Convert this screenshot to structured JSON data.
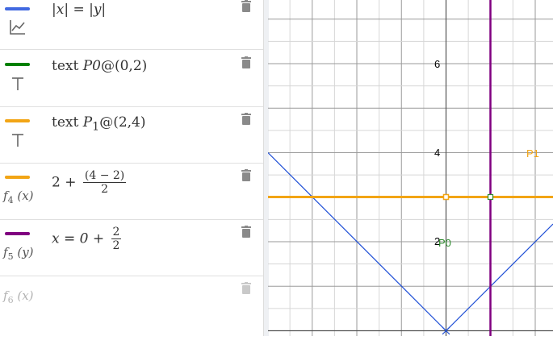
{
  "algebra_view": {
    "rows": [
      {
        "color": "#4169e1",
        "type_icon": "graph-icon",
        "label": "",
        "expr_text": "|x| = |y|"
      },
      {
        "color": "#008000",
        "type_icon": "text-icon",
        "label": "",
        "expr_prefix": "text ",
        "expr_var": "P0",
        "expr_suffix": "@(0,2)"
      },
      {
        "color": "#f2a515",
        "type_icon": "text-icon",
        "label": "",
        "expr_prefix": "text ",
        "expr_var": "P",
        "expr_sub": "1",
        "expr_suffix": "@(2,4)"
      },
      {
        "color": "#f2a515",
        "type_icon": "",
        "label_main": "f",
        "label_sub": "4",
        "label_arg": "(x)",
        "expr_prefix": "2 + ",
        "frac_num": "(4 − 2)",
        "frac_den": "2"
      },
      {
        "color": "#800080",
        "type_icon": "",
        "label_main": "f",
        "label_sub": "5",
        "label_arg": "(y)",
        "expr_prefix": "x = 0 + ",
        "frac_num": "2",
        "frac_den": "2"
      },
      {
        "color": "",
        "type_icon": "",
        "label_main": "f",
        "label_sub": "6",
        "label_arg": "(x)"
      }
    ]
  },
  "graphics_view": {
    "tick_labels_y": [
      "2",
      "4",
      "6"
    ],
    "point_labels": [
      "P0",
      "P1"
    ],
    "colors": {
      "abs_curve": "#1f4fd6",
      "f4": "#f2a515",
      "f5": "#800080",
      "P0": "#2e8b2e",
      "P1": "#f2a515",
      "grid_major": "#9a9a9a",
      "grid_minor": "#d6d6d6"
    }
  }
}
